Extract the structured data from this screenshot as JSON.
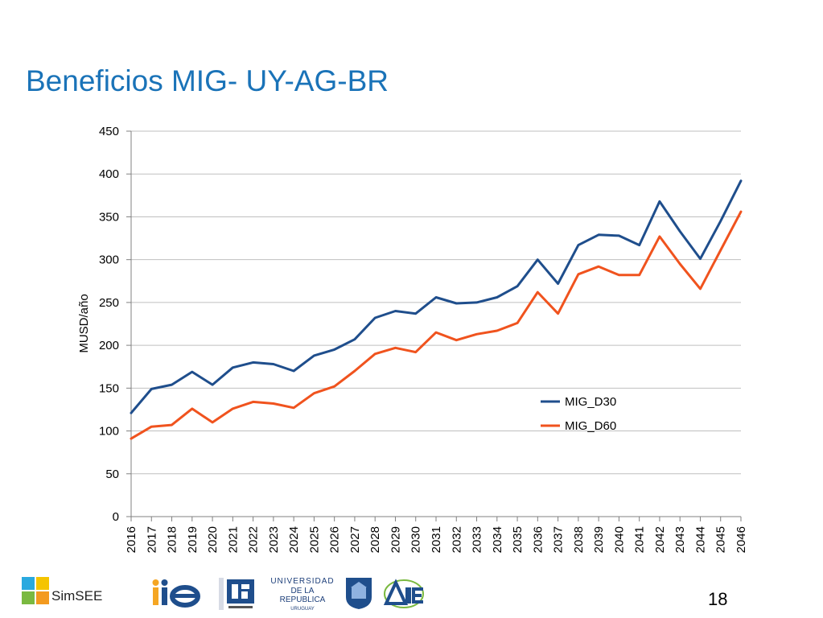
{
  "slide": {
    "title": "Beneficios MIG- UY-AG-BR",
    "page_number": "18"
  },
  "footer": {
    "simsee_label": "SimSEE",
    "udelar_line1": "UNIVERSIDAD",
    "udelar_line2": "DE LA REPUBLICA",
    "udelar_line3": "URUGUAY"
  },
  "colors": {
    "title": "#1a73b8",
    "MIG_D30": "#1f4e8c",
    "MIG_D60": "#f0531e",
    "grid": "#bfbfbf"
  },
  "chart_data": {
    "type": "line",
    "title": "",
    "xlabel": "",
    "ylabel": "MUSD/año",
    "ylim": [
      0,
      450
    ],
    "yticks": [
      0,
      50,
      100,
      150,
      200,
      250,
      300,
      350,
      400,
      450
    ],
    "grid": true,
    "legend_position": "right",
    "x": [
      "2016",
      "2017",
      "2018",
      "2019",
      "2020",
      "2021",
      "2022",
      "2023",
      "2024",
      "2025",
      "2026",
      "2027",
      "2028",
      "2029",
      "2030",
      "2031",
      "2032",
      "2033",
      "2034",
      "2035",
      "2036",
      "2037",
      "2038",
      "2039",
      "2040",
      "2041",
      "2042",
      "2043",
      "2044",
      "2045",
      "2046"
    ],
    "series": [
      {
        "name": "MIG_D30",
        "color": "#1f4e8c",
        "values": [
          121,
          149,
          154,
          169,
          154,
          174,
          180,
          178,
          170,
          188,
          195,
          207,
          232,
          240,
          237,
          256,
          249,
          250,
          256,
          269,
          300,
          272,
          317,
          329,
          328,
          317,
          368,
          333,
          301,
          345,
          392
        ]
      },
      {
        "name": "MIG_D60",
        "color": "#f0531e",
        "values": [
          91,
          105,
          107,
          126,
          110,
          126,
          134,
          132,
          127,
          144,
          152,
          170,
          190,
          197,
          192,
          215,
          206,
          213,
          217,
          226,
          262,
          237,
          283,
          292,
          282,
          282,
          327,
          295,
          266,
          311,
          356
        ]
      }
    ]
  }
}
